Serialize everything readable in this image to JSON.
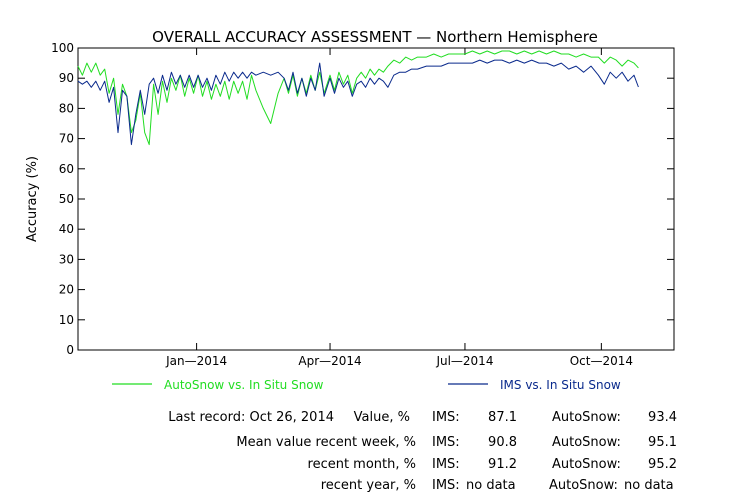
{
  "chart_data": {
    "type": "line",
    "title": "OVERALL ACCURACY ASSESSMENT — Northern Hemisphere",
    "ylabel": "Accuracy (%)",
    "xlabel": "",
    "ylim": [
      0,
      100
    ],
    "xlim": [
      "2013-10-13",
      "2014-11-19"
    ],
    "yticks": [
      0,
      10,
      20,
      30,
      40,
      50,
      60,
      70,
      80,
      90,
      100
    ],
    "xticks": [
      {
        "date": "2014-01-01",
        "label": "Jan—2014"
      },
      {
        "date": "2014-04-01",
        "label": "Apr—2014"
      },
      {
        "date": "2014-07-01",
        "label": "Jul—2014"
      },
      {
        "date": "2014-10-01",
        "label": "Oct—2014"
      }
    ],
    "grid": false,
    "legend": "below",
    "series": [
      {
        "name": "AutoSnow vs. In Situ Snow",
        "color": "#22dd22",
        "points": [
          [
            "2013-10-13",
            94
          ],
          [
            "2013-10-16",
            91
          ],
          [
            "2013-10-19",
            95
          ],
          [
            "2013-10-22",
            92
          ],
          [
            "2013-10-25",
            95
          ],
          [
            "2013-10-28",
            91
          ],
          [
            "2013-10-31",
            93
          ],
          [
            "2013-11-03",
            85
          ],
          [
            "2013-11-06",
            90
          ],
          [
            "2013-11-09",
            78
          ],
          [
            "2013-11-12",
            88
          ],
          [
            "2013-11-15",
            84
          ],
          [
            "2013-11-18",
            72
          ],
          [
            "2013-11-21",
            76
          ],
          [
            "2013-11-24",
            85
          ],
          [
            "2013-11-27",
            72
          ],
          [
            "2013-11-30",
            68
          ],
          [
            "2013-12-03",
            88
          ],
          [
            "2013-12-06",
            78
          ],
          [
            "2013-12-09",
            89
          ],
          [
            "2013-12-12",
            82
          ],
          [
            "2013-12-15",
            90
          ],
          [
            "2013-12-18",
            86
          ],
          [
            "2013-12-21",
            91
          ],
          [
            "2013-12-24",
            84
          ],
          [
            "2013-12-27",
            90
          ],
          [
            "2013-12-30",
            85
          ],
          [
            "2014-01-02",
            91
          ],
          [
            "2014-01-05",
            84
          ],
          [
            "2014-01-08",
            89
          ],
          [
            "2014-01-11",
            83
          ],
          [
            "2014-01-14",
            88
          ],
          [
            "2014-01-17",
            84
          ],
          [
            "2014-01-20",
            89
          ],
          [
            "2014-01-23",
            83
          ],
          [
            "2014-01-26",
            89
          ],
          [
            "2014-01-29",
            85
          ],
          [
            "2014-02-01",
            89
          ],
          [
            "2014-02-04",
            83
          ],
          [
            "2014-02-07",
            91
          ],
          [
            "2014-02-10",
            86
          ],
          [
            "2014-02-15",
            80
          ],
          [
            "2014-02-20",
            75
          ],
          [
            "2014-02-25",
            85
          ],
          [
            "2014-03-01",
            90
          ],
          [
            "2014-03-04",
            85
          ],
          [
            "2014-03-07",
            91
          ],
          [
            "2014-03-10",
            84
          ],
          [
            "2014-03-13",
            90
          ],
          [
            "2014-03-16",
            85
          ],
          [
            "2014-03-19",
            91
          ],
          [
            "2014-03-22",
            86
          ],
          [
            "2014-03-25",
            92
          ],
          [
            "2014-03-28",
            85
          ],
          [
            "2014-04-01",
            91
          ],
          [
            "2014-04-04",
            86
          ],
          [
            "2014-04-07",
            92
          ],
          [
            "2014-04-10",
            88
          ],
          [
            "2014-04-13",
            91
          ],
          [
            "2014-04-16",
            85
          ],
          [
            "2014-04-19",
            90
          ],
          [
            "2014-04-22",
            92
          ],
          [
            "2014-04-25",
            90
          ],
          [
            "2014-04-28",
            93
          ],
          [
            "2014-05-01",
            91
          ],
          [
            "2014-05-04",
            93
          ],
          [
            "2014-05-07",
            92
          ],
          [
            "2014-05-10",
            94
          ],
          [
            "2014-05-14",
            96
          ],
          [
            "2014-05-18",
            95
          ],
          [
            "2014-05-22",
            97
          ],
          [
            "2014-05-26",
            96
          ],
          [
            "2014-05-30",
            97
          ],
          [
            "2014-06-05",
            97
          ],
          [
            "2014-06-10",
            98
          ],
          [
            "2014-06-15",
            97
          ],
          [
            "2014-06-20",
            98
          ],
          [
            "2014-06-25",
            98
          ],
          [
            "2014-07-01",
            98
          ],
          [
            "2014-07-06",
            99
          ],
          [
            "2014-07-11",
            98
          ],
          [
            "2014-07-16",
            99
          ],
          [
            "2014-07-21",
            98
          ],
          [
            "2014-07-26",
            99
          ],
          [
            "2014-07-31",
            99
          ],
          [
            "2014-08-05",
            98
          ],
          [
            "2014-08-10",
            99
          ],
          [
            "2014-08-15",
            98
          ],
          [
            "2014-08-20",
            99
          ],
          [
            "2014-08-25",
            98
          ],
          [
            "2014-08-30",
            99
          ],
          [
            "2014-09-04",
            98
          ],
          [
            "2014-09-09",
            98
          ],
          [
            "2014-09-14",
            97
          ],
          [
            "2014-09-19",
            98
          ],
          [
            "2014-09-24",
            97
          ],
          [
            "2014-09-29",
            97
          ],
          [
            "2014-10-03",
            95
          ],
          [
            "2014-10-07",
            97
          ],
          [
            "2014-10-11",
            96
          ],
          [
            "2014-10-15",
            94
          ],
          [
            "2014-10-19",
            96
          ],
          [
            "2014-10-23",
            95
          ],
          [
            "2014-10-26",
            93.4
          ]
        ]
      },
      {
        "name": "IMS vs. In Situ Snow",
        "color": "#0a2a8c",
        "points": [
          [
            "2013-10-13",
            89
          ],
          [
            "2013-10-16",
            88
          ],
          [
            "2013-10-19",
            89
          ],
          [
            "2013-10-22",
            87
          ],
          [
            "2013-10-25",
            89
          ],
          [
            "2013-10-28",
            86
          ],
          [
            "2013-10-31",
            89
          ],
          [
            "2013-11-03",
            82
          ],
          [
            "2013-11-06",
            87
          ],
          [
            "2013-11-09",
            72
          ],
          [
            "2013-11-12",
            86
          ],
          [
            "2013-11-15",
            84
          ],
          [
            "2013-11-18",
            68
          ],
          [
            "2013-11-21",
            78
          ],
          [
            "2013-11-24",
            86
          ],
          [
            "2013-11-27",
            78
          ],
          [
            "2013-11-30",
            88
          ],
          [
            "2013-12-03",
            90
          ],
          [
            "2013-12-06",
            85
          ],
          [
            "2013-12-09",
            91
          ],
          [
            "2013-12-12",
            86
          ],
          [
            "2013-12-15",
            92
          ],
          [
            "2013-12-18",
            88
          ],
          [
            "2013-12-21",
            91
          ],
          [
            "2013-12-24",
            87
          ],
          [
            "2013-12-27",
            91
          ],
          [
            "2013-12-30",
            87
          ],
          [
            "2014-01-02",
            91
          ],
          [
            "2014-01-05",
            87
          ],
          [
            "2014-01-08",
            90
          ],
          [
            "2014-01-11",
            86
          ],
          [
            "2014-01-14",
            91
          ],
          [
            "2014-01-17",
            88
          ],
          [
            "2014-01-20",
            92
          ],
          [
            "2014-01-23",
            89
          ],
          [
            "2014-01-26",
            92
          ],
          [
            "2014-01-29",
            90
          ],
          [
            "2014-02-01",
            92
          ],
          [
            "2014-02-04",
            90
          ],
          [
            "2014-02-07",
            92
          ],
          [
            "2014-02-10",
            91
          ],
          [
            "2014-02-15",
            92
          ],
          [
            "2014-02-20",
            91
          ],
          [
            "2014-02-25",
            92
          ],
          [
            "2014-03-01",
            90
          ],
          [
            "2014-03-04",
            86
          ],
          [
            "2014-03-07",
            92
          ],
          [
            "2014-03-10",
            85
          ],
          [
            "2014-03-13",
            90
          ],
          [
            "2014-03-16",
            84
          ],
          [
            "2014-03-19",
            90
          ],
          [
            "2014-03-22",
            86
          ],
          [
            "2014-03-25",
            95
          ],
          [
            "2014-03-28",
            84
          ],
          [
            "2014-04-01",
            90
          ],
          [
            "2014-04-04",
            85
          ],
          [
            "2014-04-07",
            90
          ],
          [
            "2014-04-10",
            87
          ],
          [
            "2014-04-13",
            89
          ],
          [
            "2014-04-16",
            84
          ],
          [
            "2014-04-19",
            88
          ],
          [
            "2014-04-22",
            89
          ],
          [
            "2014-04-25",
            87
          ],
          [
            "2014-04-28",
            90
          ],
          [
            "2014-05-01",
            88
          ],
          [
            "2014-05-04",
            90
          ],
          [
            "2014-05-07",
            89
          ],
          [
            "2014-05-10",
            87
          ],
          [
            "2014-05-14",
            91
          ],
          [
            "2014-05-18",
            92
          ],
          [
            "2014-05-22",
            92
          ],
          [
            "2014-05-26",
            93
          ],
          [
            "2014-05-30",
            93
          ],
          [
            "2014-06-05",
            94
          ],
          [
            "2014-06-10",
            94
          ],
          [
            "2014-06-15",
            94
          ],
          [
            "2014-06-20",
            95
          ],
          [
            "2014-06-25",
            95
          ],
          [
            "2014-07-01",
            95
          ],
          [
            "2014-07-06",
            95
          ],
          [
            "2014-07-11",
            96
          ],
          [
            "2014-07-16",
            95
          ],
          [
            "2014-07-21",
            96
          ],
          [
            "2014-07-26",
            96
          ],
          [
            "2014-07-31",
            95
          ],
          [
            "2014-08-05",
            96
          ],
          [
            "2014-08-10",
            95
          ],
          [
            "2014-08-15",
            96
          ],
          [
            "2014-08-20",
            95
          ],
          [
            "2014-08-25",
            95
          ],
          [
            "2014-08-30",
            94
          ],
          [
            "2014-09-04",
            95
          ],
          [
            "2014-09-09",
            93
          ],
          [
            "2014-09-14",
            94
          ],
          [
            "2014-09-19",
            92
          ],
          [
            "2014-09-24",
            94
          ],
          [
            "2014-09-29",
            91
          ],
          [
            "2014-10-03",
            88
          ],
          [
            "2014-10-07",
            92
          ],
          [
            "2014-10-11",
            90
          ],
          [
            "2014-10-15",
            92
          ],
          [
            "2014-10-19",
            89
          ],
          [
            "2014-10-23",
            91
          ],
          [
            "2014-10-26",
            87.1
          ]
        ]
      }
    ]
  },
  "stats": {
    "last_record": {
      "label": "Last record: Oct 26, 2014",
      "value_label": "Value, %",
      "ims_label": "IMS:",
      "ims_value": "87.1",
      "auto_label": "AutoSnow:",
      "auto_value": "93.4"
    },
    "week": {
      "label": "Mean value recent week, %",
      "ims_label": "IMS:",
      "ims_value": "90.8",
      "auto_label": "AutoSnow:",
      "auto_value": "95.1"
    },
    "month": {
      "label": "recent month, %",
      "ims_label": "IMS:",
      "ims_value": "91.2",
      "auto_label": "AutoSnow:",
      "auto_value": "95.2"
    },
    "year": {
      "label": "recent year, %",
      "ims_label": "IMS:",
      "ims_value": "no data",
      "auto_label": "AutoSnow:",
      "auto_value": "no data"
    }
  }
}
